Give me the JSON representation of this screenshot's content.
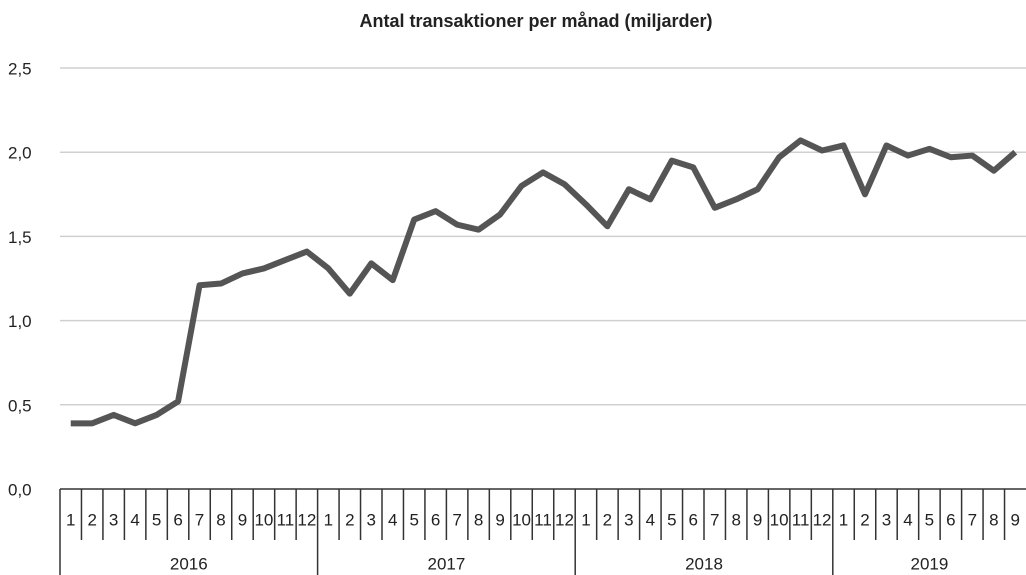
{
  "chart_data": {
    "type": "line",
    "title": "Antal transaktioner per månad (miljarder)",
    "categories": [
      "1",
      "2",
      "3",
      "4",
      "5",
      "6",
      "7",
      "8",
      "9",
      "10",
      "11",
      "12",
      "1",
      "2",
      "3",
      "4",
      "5",
      "6",
      "7",
      "8",
      "9",
      "10",
      "11",
      "12",
      "1",
      "2",
      "3",
      "4",
      "5",
      "6",
      "7",
      "8",
      "9",
      "10",
      "11",
      "12",
      "1",
      "2",
      "3",
      "4",
      "5",
      "6",
      "7",
      "8",
      "9"
    ],
    "x_groups": [
      "2016",
      "2017",
      "2018",
      "2019"
    ],
    "series": [
      {
        "name": "Antal transaktioner",
        "color": "#555555",
        "values": [
          0.39,
          0.39,
          0.44,
          0.39,
          0.44,
          0.52,
          1.21,
          1.22,
          1.28,
          1.31,
          1.36,
          1.41,
          1.31,
          1.16,
          1.34,
          1.24,
          1.6,
          1.65,
          1.57,
          1.54,
          1.63,
          1.8,
          1.88,
          1.81,
          1.69,
          1.56,
          1.78,
          1.72,
          1.95,
          1.91,
          1.67,
          1.72,
          1.78,
          1.97,
          2.07,
          2.01,
          2.04,
          1.75,
          2.04,
          1.98,
          2.02,
          1.97,
          1.98,
          1.89,
          2.0
        ]
      }
    ],
    "ylim": [
      0,
      2.5
    ],
    "yticks": [
      {
        "value": 0,
        "label": "0,0"
      },
      {
        "value": 0.5,
        "label": "0,5"
      },
      {
        "value": 1,
        "label": "1,0"
      },
      {
        "value": 1.5,
        "label": "1,5"
      },
      {
        "value": 2,
        "label": "2,0"
      },
      {
        "value": 2.5,
        "label": "2,5"
      }
    ],
    "grid": true
  }
}
